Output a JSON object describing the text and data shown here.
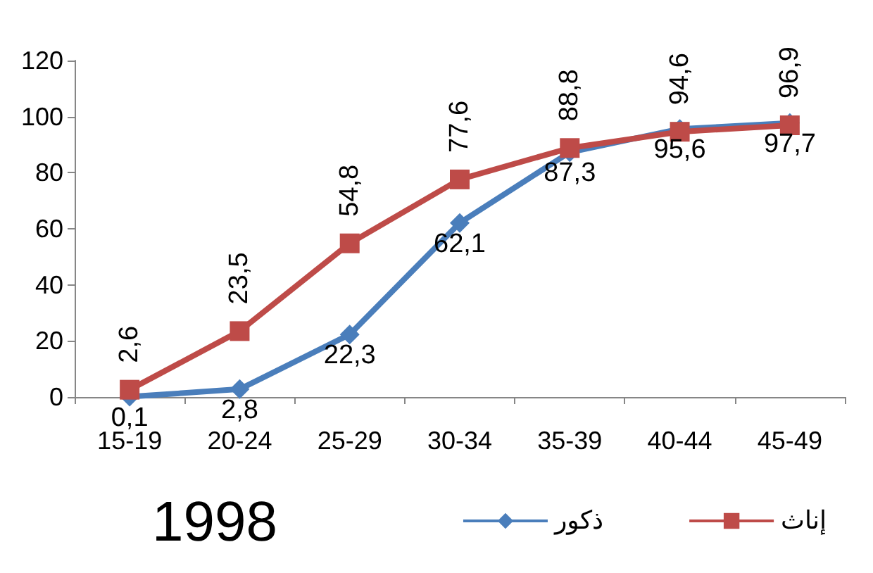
{
  "chart_data": {
    "type": "line",
    "categories": [
      "15-19",
      "20-24",
      "25-29",
      "30-34",
      "35-39",
      "40-44",
      "45-49"
    ],
    "series": [
      {
        "name": "ذكور",
        "color": "#4a7ebb",
        "marker": "diamond",
        "values": [
          0.1,
          2.8,
          22.3,
          62.1,
          87.3,
          95.6,
          97.7
        ],
        "value_labels": [
          "0,1",
          "2,8",
          "22,3",
          "62,1",
          "87,3",
          "95,6",
          "97,7"
        ]
      },
      {
        "name": "إناث",
        "color": "#be4b48",
        "marker": "square",
        "values": [
          2.6,
          23.5,
          54.8,
          77.6,
          88.8,
          94.6,
          96.9
        ],
        "value_labels": [
          "2,6",
          "23,5",
          "54,8",
          "77,6",
          "88,8",
          "94,6",
          "96,9"
        ]
      }
    ],
    "ylim": [
      0,
      120
    ],
    "yticks": [
      0,
      20,
      40,
      60,
      80,
      100,
      120
    ],
    "grid": false,
    "legend": "bottom right",
    "annotations": [
      "1998"
    ]
  }
}
